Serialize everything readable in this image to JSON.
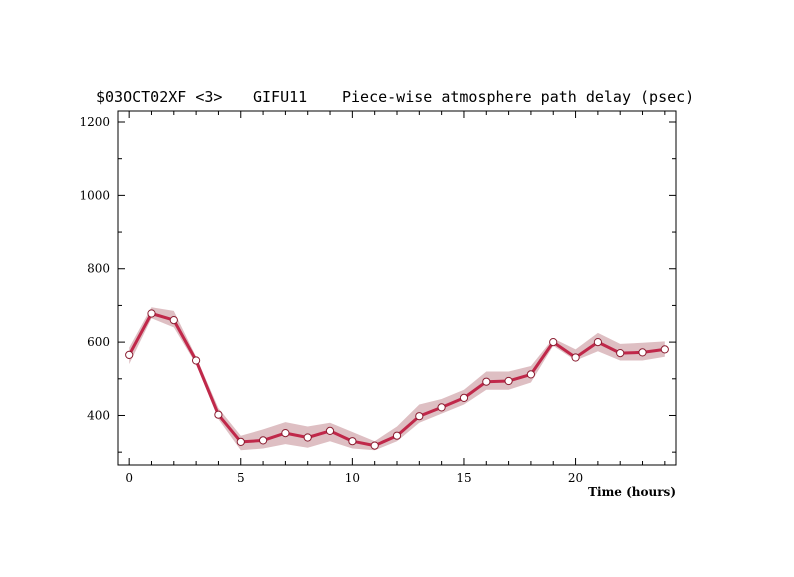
{
  "chart_data": {
    "type": "line",
    "title_parts": [
      "$03OCT02XF <3>",
      "GIFU11",
      "Piece-wise atmosphere path delay (psec)"
    ],
    "xlabel": "Time (hours)",
    "ylabel": "",
    "xlim": [
      -0.5,
      24.5
    ],
    "ylim": [
      265,
      1230
    ],
    "x_ticks": [
      0,
      5,
      10,
      15,
      20
    ],
    "y_ticks": [
      400,
      600,
      800,
      1000,
      1200
    ],
    "grid": false,
    "colors": {
      "line": "#c0284a",
      "band": "#d8b4b8",
      "marker_fill": "#ffffff",
      "marker_edge": "#8a1c30"
    },
    "series": [
      {
        "x": [
          0,
          1,
          2,
          3,
          4,
          5,
          6,
          7,
          8,
          9,
          10,
          11,
          12,
          13,
          14,
          15,
          16,
          17,
          18,
          19,
          20,
          21,
          22,
          23,
          24
        ],
        "values": [
          565,
          678,
          660,
          550,
          402,
          328,
          332,
          352,
          340,
          358,
          330,
          318,
          345,
          398,
          422,
          448,
          492,
          494,
          512,
          600,
          558,
          600,
          570,
          572,
          580
        ],
        "band_upper": [
          585,
          695,
          685,
          560,
          420,
          345,
          362,
          382,
          370,
          380,
          355,
          330,
          370,
          430,
          445,
          470,
          520,
          520,
          535,
          610,
          580,
          625,
          595,
          598,
          602
        ],
        "band_lower": [
          540,
          665,
          640,
          540,
          390,
          305,
          310,
          322,
          312,
          330,
          310,
          305,
          330,
          380,
          405,
          430,
          470,
          470,
          490,
          590,
          550,
          575,
          550,
          550,
          560
        ]
      }
    ]
  }
}
